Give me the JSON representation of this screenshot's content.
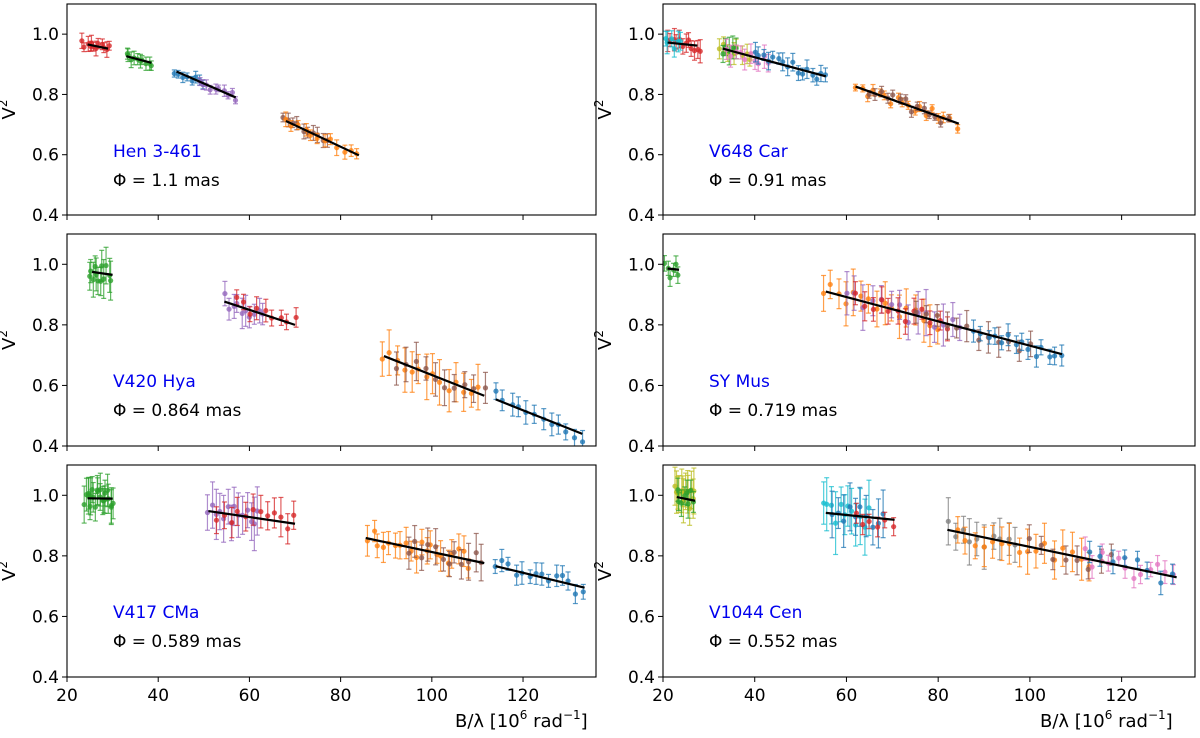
{
  "figure": {
    "xlabel": "B/λ [10",
    "xlabel_sup": "6",
    "xlabel_unit": " rad",
    "xlabel_unit_sup": "−1",
    "xlabel_close": "]",
    "ylabel": "V",
    "ylabel_sup": "2"
  },
  "chart_data": [
    {
      "type": "scatter",
      "star": "Hen 3-461",
      "phi": "Φ = 1.1 mas",
      "xlim": [
        20,
        136
      ],
      "ylim": [
        0.4,
        1.1
      ],
      "xticks": [
        20,
        40,
        60,
        80,
        100,
        120
      ],
      "yticks": [
        0.4,
        0.6,
        0.8,
        1.0
      ],
      "show_xticklabels": false,
      "groups": [
        {
          "color": "#d62728",
          "x0": 23.5,
          "x1": 29,
          "n": 12,
          "err": 0.02
        },
        {
          "color": "#2ca02c",
          "x0": 33,
          "x1": 38.5,
          "n": 10,
          "err": 0.02
        },
        {
          "color": "#1f77b4",
          "x0": 43.5,
          "x1": 50,
          "n": 8,
          "err": 0.015
        },
        {
          "color": "#9467bd",
          "x0": 49,
          "x1": 57,
          "n": 10,
          "err": 0.015
        },
        {
          "color": "#8c564b",
          "x0": 67.5,
          "x1": 77,
          "n": 10,
          "err": 0.02
        },
        {
          "color": "#ff7f0e",
          "x0": 68,
          "x1": 83.5,
          "n": 12,
          "err": 0.02
        }
      ],
      "fit_segments": [
        [
          24.5,
          0.966,
          29,
          0.952
        ],
        [
          33,
          0.927,
          38.5,
          0.905
        ],
        [
          44,
          0.876,
          57,
          0.79
        ],
        [
          68,
          0.712,
          84,
          0.598
        ]
      ],
      "scatter": 0.012
    },
    {
      "type": "scatter",
      "star": "V648 Car",
      "phi": "Φ = 0.91 mas",
      "xlim": [
        20,
        136
      ],
      "ylim": [
        0.4,
        1.1
      ],
      "xticks": [
        20,
        40,
        60,
        80,
        100,
        120
      ],
      "yticks": [
        0.4,
        0.6,
        0.8,
        1.0
      ],
      "show_xticklabels": false,
      "groups": [
        {
          "color": "#d62728",
          "x0": 21,
          "x1": 28,
          "n": 12,
          "err": 0.03
        },
        {
          "color": "#17becf",
          "x0": 20.5,
          "x1": 24,
          "n": 6,
          "err": 0.03
        },
        {
          "color": "#bcbd22",
          "x0": 32.5,
          "x1": 39,
          "n": 8,
          "err": 0.03
        },
        {
          "color": "#2ca02c",
          "x0": 33,
          "x1": 36,
          "n": 5,
          "err": 0.04
        },
        {
          "color": "#e377c2",
          "x0": 34,
          "x1": 43,
          "n": 10,
          "err": 0.03
        },
        {
          "color": "#1f77b4",
          "x0": 40,
          "x1": 55.5,
          "n": 16,
          "err": 0.025
        },
        {
          "color": "#ff7f0e",
          "x0": 62,
          "x1": 84,
          "n": 18,
          "err": 0.015
        },
        {
          "color": "#8c564b",
          "x0": 65,
          "x1": 82,
          "n": 14,
          "err": 0.015
        }
      ],
      "fit_segments": [
        [
          21,
          0.972,
          27.5,
          0.962
        ],
        [
          33,
          0.952,
          55.5,
          0.86
        ],
        [
          62,
          0.826,
          84.5,
          0.703
        ]
      ],
      "scatter": 0.02
    },
    {
      "type": "scatter",
      "star": "V420 Hya",
      "phi": "Φ = 0.864 mas",
      "xlim": [
        20,
        136
      ],
      "ylim": [
        0.4,
        1.1
      ],
      "xticks": [
        20,
        40,
        60,
        80,
        100,
        120
      ],
      "yticks": [
        0.4,
        0.6,
        0.8,
        1.0
      ],
      "show_xticklabels": false,
      "groups": [
        {
          "color": "#2ca02c",
          "x0": 25,
          "x1": 29.5,
          "n": 12,
          "err": 0.05
        },
        {
          "color": "#9467bd",
          "x0": 54.5,
          "x1": 63,
          "n": 10,
          "err": 0.04
        },
        {
          "color": "#d62728",
          "x0": 57,
          "x1": 70,
          "n": 9,
          "err": 0.03
        },
        {
          "color": "#ff7f0e",
          "x0": 89,
          "x1": 110,
          "n": 14,
          "err": 0.06
        },
        {
          "color": "#8c564b",
          "x0": 92,
          "x1": 111.5,
          "n": 10,
          "err": 0.05
        },
        {
          "color": "#1f77b4",
          "x0": 114,
          "x1": 133,
          "n": 12,
          "err": 0.03
        }
      ],
      "fit_segments": [
        [
          25.5,
          0.975,
          30,
          0.965
        ],
        [
          54.5,
          0.877,
          70,
          0.8
        ],
        [
          89.5,
          0.697,
          111.5,
          0.566
        ],
        [
          114,
          0.554,
          133,
          0.44
        ]
      ],
      "scatter": 0.03
    },
    {
      "type": "scatter",
      "star": "SY Mus",
      "phi": "Φ = 0.719 mas",
      "xlim": [
        20,
        136
      ],
      "ylim": [
        0.4,
        1.1
      ],
      "xticks": [
        20,
        40,
        60,
        80,
        100,
        120
      ],
      "yticks": [
        0.4,
        0.6,
        0.8,
        1.0
      ],
      "show_xticklabels": false,
      "groups": [
        {
          "color": "#2ca02c",
          "x0": 20.5,
          "x1": 23.5,
          "n": 6,
          "err": 0.03
        },
        {
          "color": "#ff7f0e",
          "x0": 55,
          "x1": 80,
          "n": 16,
          "err": 0.06
        },
        {
          "color": "#9467bd",
          "x0": 60,
          "x1": 85,
          "n": 14,
          "err": 0.06
        },
        {
          "color": "#d62728",
          "x0": 62,
          "x1": 82,
          "n": 12,
          "err": 0.04
        },
        {
          "color": "#8c564b",
          "x0": 75,
          "x1": 100,
          "n": 12,
          "err": 0.04
        },
        {
          "color": "#1f77b4",
          "x0": 88,
          "x1": 107,
          "n": 14,
          "err": 0.03
        }
      ],
      "fit_segments": [
        [
          21,
          0.986,
          23.5,
          0.982
        ],
        [
          55.5,
          0.91,
          107,
          0.703
        ]
      ],
      "scatter": 0.03
    },
    {
      "type": "scatter",
      "star": "V417 CMa",
      "phi": "Φ = 0.589 mas",
      "xlim": [
        20,
        136
      ],
      "ylim": [
        0.4,
        1.1
      ],
      "xticks": [
        20,
        40,
        60,
        80,
        100,
        120
      ],
      "yticks": [
        0.4,
        0.6,
        0.8,
        1.0
      ],
      "show_xticklabels": true,
      "groups": [
        {
          "color": "#2ca02c",
          "x0": 24,
          "x1": 30,
          "n": 22,
          "err": 0.05
        },
        {
          "color": "#9467bd",
          "x0": 51,
          "x1": 62,
          "n": 14,
          "err": 0.07
        },
        {
          "color": "#d62728",
          "x0": 53,
          "x1": 70,
          "n": 12,
          "err": 0.05
        },
        {
          "color": "#ff7f0e",
          "x0": 86,
          "x1": 108,
          "n": 20,
          "err": 0.04
        },
        {
          "color": "#8c564b",
          "x0": 95,
          "x1": 111,
          "n": 12,
          "err": 0.05
        },
        {
          "color": "#1f77b4",
          "x0": 114,
          "x1": 133,
          "n": 14,
          "err": 0.03
        }
      ],
      "fit_segments": [
        [
          24.5,
          0.99,
          30,
          0.989
        ],
        [
          51,
          0.948,
          70,
          0.906
        ],
        [
          85.5,
          0.859,
          111.5,
          0.776
        ],
        [
          114,
          0.766,
          133.5,
          0.695
        ]
      ],
      "scatter": 0.03
    },
    {
      "type": "scatter",
      "star": "V1044 Cen",
      "phi": "Φ = 0.552 mas",
      "xlim": [
        20,
        136
      ],
      "ylim": [
        0.4,
        1.1
      ],
      "xticks": [
        20,
        40,
        60,
        80,
        100,
        120
      ],
      "yticks": [
        0.4,
        0.6,
        0.8,
        1.0
      ],
      "show_xticklabels": true,
      "groups": [
        {
          "color": "#bcbd22",
          "x0": 22.5,
          "x1": 27,
          "n": 14,
          "err": 0.06
        },
        {
          "color": "#2ca02c",
          "x0": 23,
          "x1": 26.5,
          "n": 8,
          "err": 0.04
        },
        {
          "color": "#17becf",
          "x0": 55,
          "x1": 65,
          "n": 12,
          "err": 0.08
        },
        {
          "color": "#1f77b4",
          "x0": 57,
          "x1": 68,
          "n": 10,
          "err": 0.07
        },
        {
          "color": "#d62728",
          "x0": 62,
          "x1": 70,
          "n": 6,
          "err": 0.03
        },
        {
          "color": "#7f7f7f",
          "x0": 82,
          "x1": 97,
          "n": 10,
          "err": 0.06
        },
        {
          "color": "#ff7f0e",
          "x0": 84,
          "x1": 113,
          "n": 16,
          "err": 0.06
        },
        {
          "color": "#8c564b",
          "x0": 100,
          "x1": 118,
          "n": 8,
          "err": 0.04
        },
        {
          "color": "#e377c2",
          "x0": 112,
          "x1": 131.5,
          "n": 12,
          "err": 0.03
        },
        {
          "color": "#1f77b4",
          "x0": 113,
          "x1": 131,
          "n": 8,
          "err": 0.03
        }
      ],
      "fit_segments": [
        [
          23,
          0.994,
          27,
          0.982
        ],
        [
          55.5,
          0.942,
          70.5,
          0.919
        ],
        [
          82,
          0.886,
          132,
          0.729
        ]
      ],
      "scatter": 0.035
    }
  ]
}
